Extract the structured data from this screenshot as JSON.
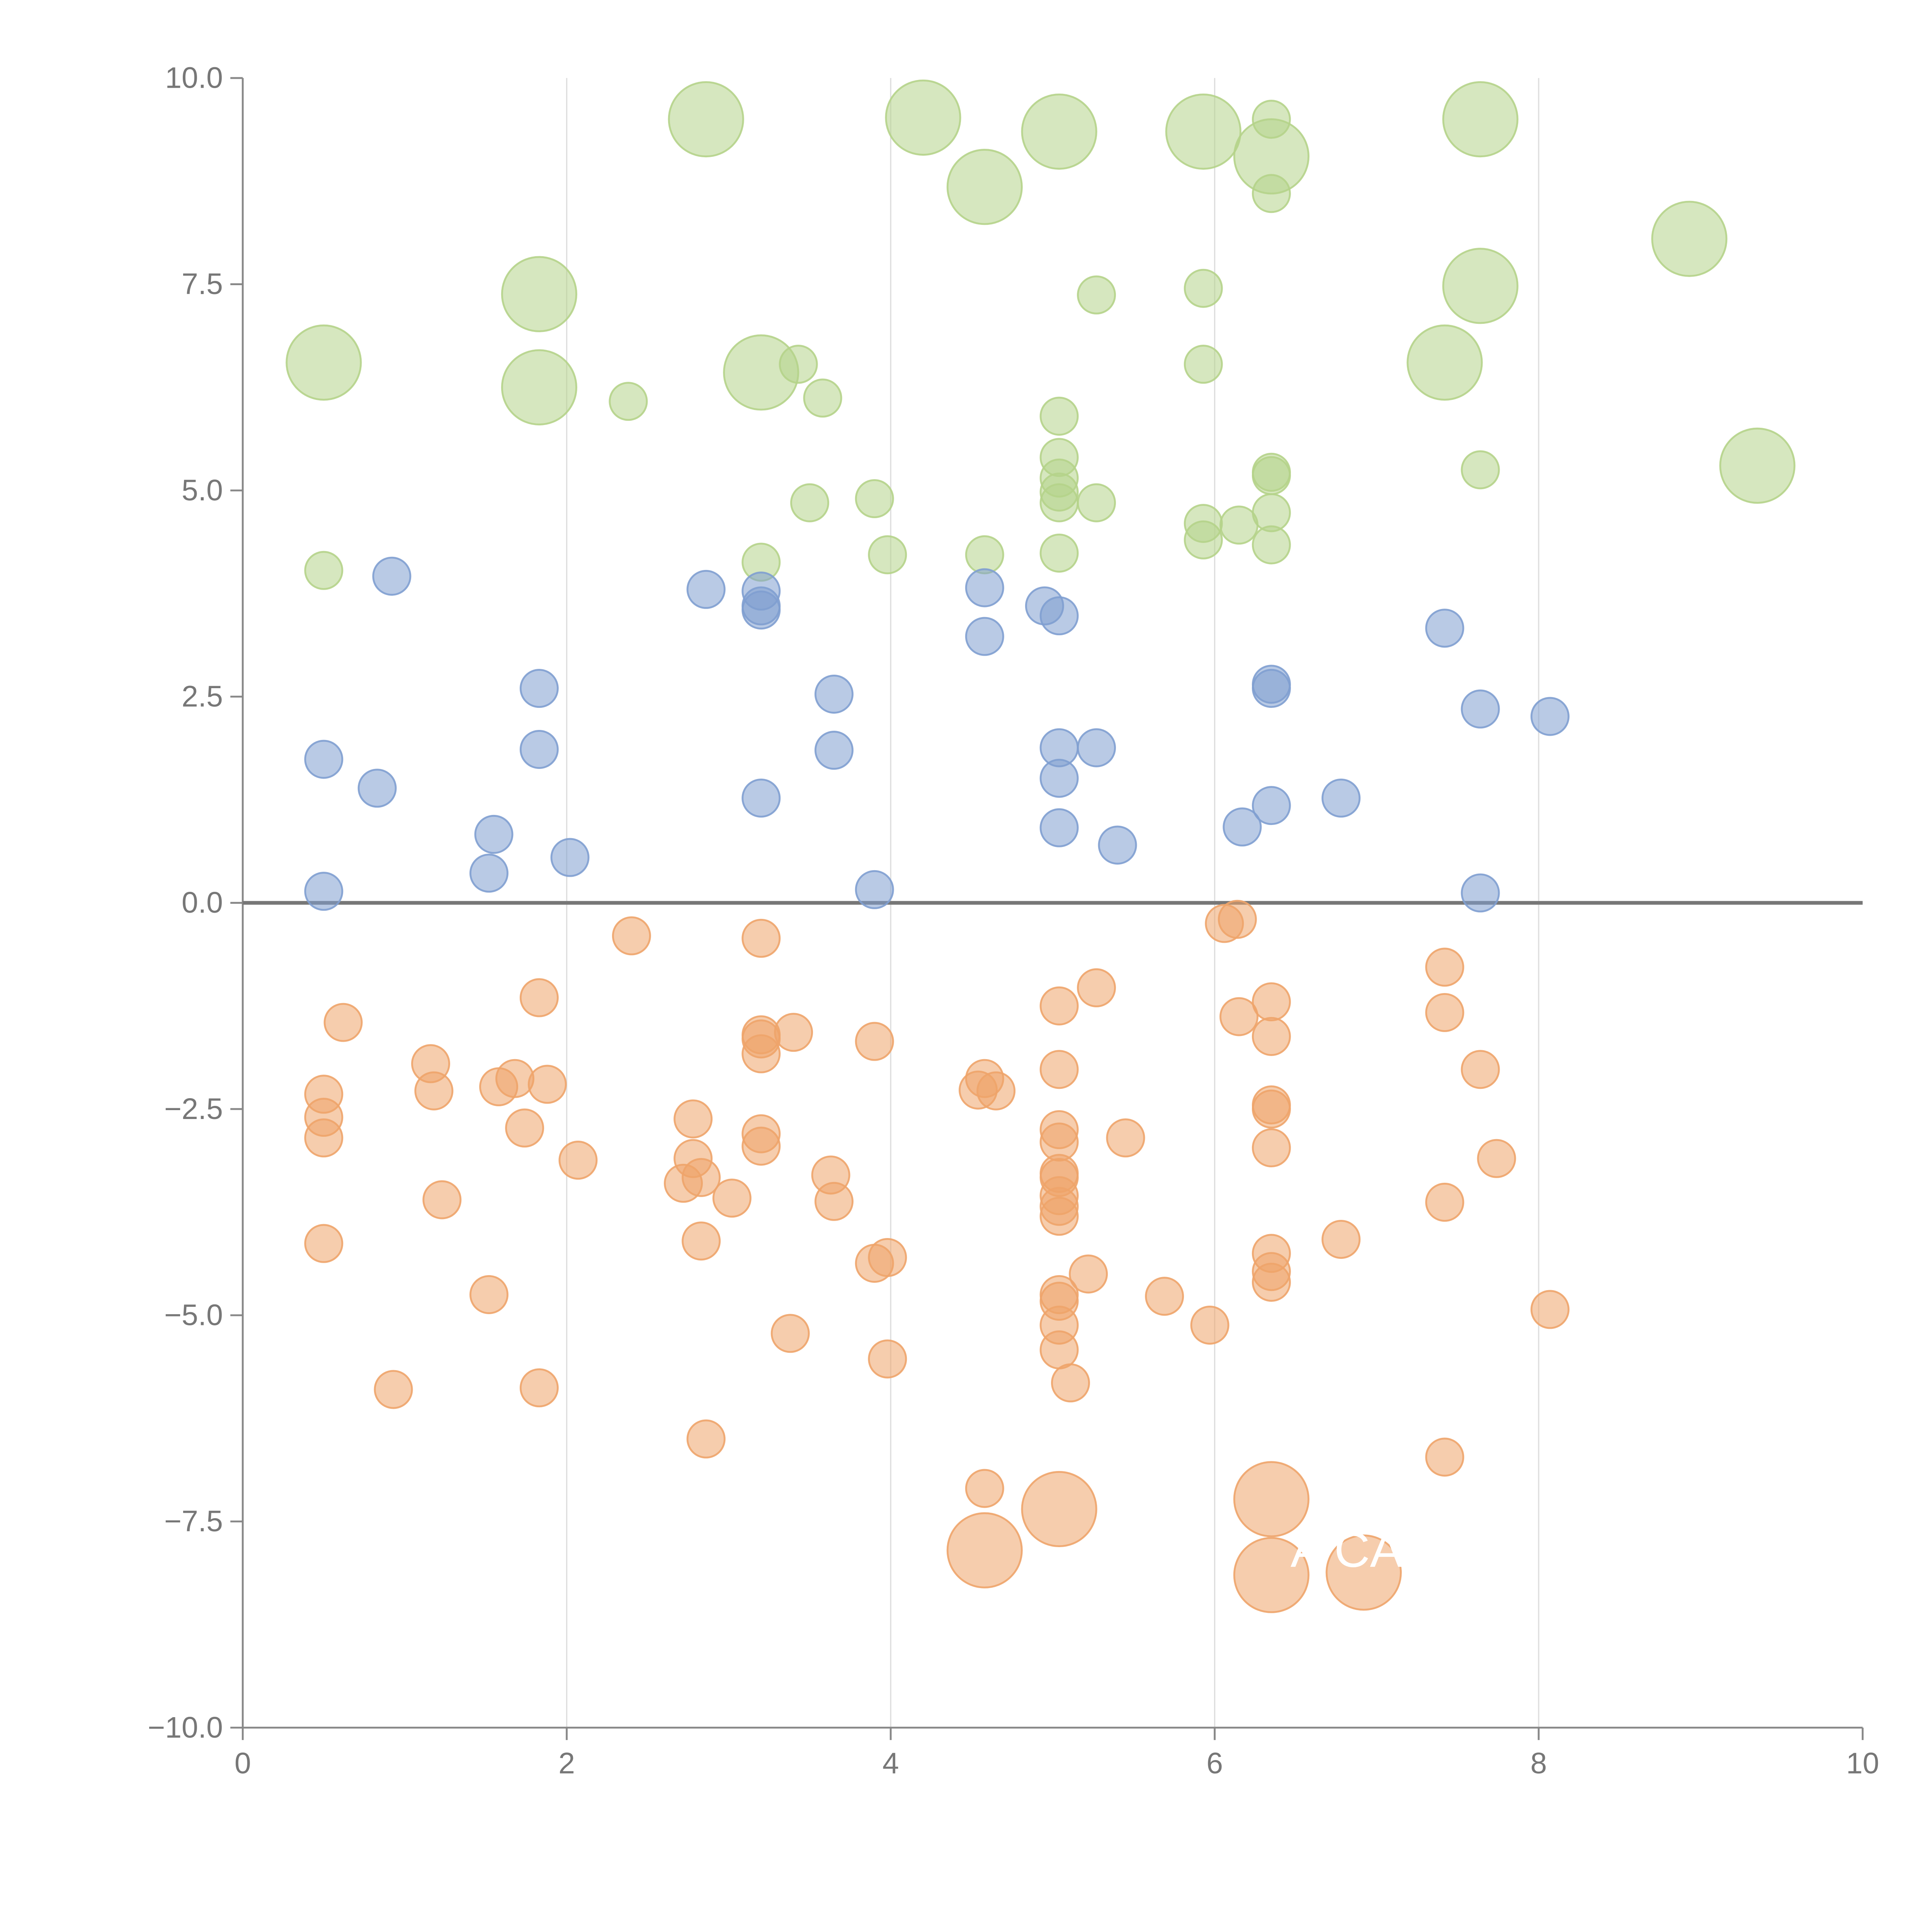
{
  "chart_data": {
    "type": "scatter",
    "title": "",
    "xlabel": "",
    "ylabel": "",
    "xlim": [
      0,
      10
    ],
    "ylim": [
      -10,
      10
    ],
    "x_ticks": [
      0,
      2,
      4,
      6,
      8,
      10
    ],
    "x_tick_labels": [
      "0",
      "2",
      "4",
      "6",
      "8",
      "10"
    ],
    "y_ticks": [
      -10,
      -7.5,
      -5,
      -2.5,
      0,
      2.5,
      5,
      7.5,
      10
    ],
    "y_tick_labels": [
      "−10.0",
      "−7.5",
      "−5.0",
      "−2.5",
      "0.0",
      "2.5",
      "5.0",
      "7.5",
      "10.0"
    ],
    "vertical_gridlines_at": [
      2,
      4,
      6,
      8
    ],
    "zero_line": 0,
    "colors": {
      "green": "#b5d38a",
      "blue": "#7f9fd0",
      "orange": "#eea46a",
      "axis": "#888888",
      "grid": "#dddddd",
      "zero": "#777777"
    },
    "series": [
      {
        "name": "green",
        "color": "#b5d38a",
        "points": [
          [
            0.5,
            6.55,
            "L"
          ],
          [
            1.83,
            7.38,
            "L"
          ],
          [
            1.83,
            6.25,
            "L"
          ],
          [
            2.86,
            9.5,
            "L"
          ],
          [
            3.2,
            6.43,
            "L"
          ],
          [
            4.2,
            9.52,
            "L"
          ],
          [
            4.58,
            8.68,
            "L"
          ],
          [
            5.04,
            9.35,
            "L"
          ],
          [
            5.93,
            9.35,
            "L"
          ],
          [
            6.35,
            9.05,
            "L"
          ],
          [
            7.42,
            6.55,
            "L"
          ],
          [
            7.64,
            9.5,
            "L"
          ],
          [
            7.64,
            7.48,
            "L"
          ],
          [
            8.93,
            8.05,
            "L"
          ],
          [
            9.35,
            5.3,
            "L"
          ],
          [
            0.5,
            4.03,
            "S"
          ],
          [
            2.38,
            6.08,
            "S"
          ],
          [
            3.2,
            4.13,
            "S"
          ],
          [
            3.43,
            6.53,
            "S"
          ],
          [
            3.5,
            4.85,
            "S"
          ],
          [
            3.58,
            6.12,
            "S"
          ],
          [
            3.9,
            4.9,
            "S"
          ],
          [
            3.98,
            4.22,
            "S"
          ],
          [
            4.58,
            4.22,
            "S"
          ],
          [
            5.04,
            5.9,
            "S"
          ],
          [
            5.04,
            5.4,
            "S"
          ],
          [
            5.04,
            5.15,
            "S"
          ],
          [
            5.04,
            4.98,
            "S"
          ],
          [
            5.04,
            4.85,
            "S"
          ],
          [
            5.04,
            4.24,
            "S"
          ],
          [
            5.27,
            7.37,
            "S"
          ],
          [
            5.27,
            4.85,
            "S"
          ],
          [
            5.93,
            7.45,
            "S"
          ],
          [
            5.93,
            6.53,
            "S"
          ],
          [
            5.93,
            4.6,
            "S"
          ],
          [
            5.93,
            4.4,
            "S"
          ],
          [
            6.15,
            4.58,
            "S"
          ],
          [
            6.35,
            9.5,
            "S"
          ],
          [
            6.35,
            8.6,
            "S"
          ],
          [
            6.35,
            5.22,
            "S"
          ],
          [
            6.35,
            5.18,
            "S"
          ],
          [
            6.35,
            4.73,
            "S"
          ],
          [
            6.35,
            4.34,
            "S"
          ],
          [
            7.64,
            5.25,
            "S"
          ]
        ]
      },
      {
        "name": "blue",
        "color": "#7f9fd0",
        "points": [
          [
            0.5,
            1.74,
            "S"
          ],
          [
            0.5,
            0.14,
            "S"
          ],
          [
            0.83,
            1.39,
            "S"
          ],
          [
            0.92,
            3.96,
            "S"
          ],
          [
            1.52,
            0.36,
            "S"
          ],
          [
            1.55,
            0.83,
            "S"
          ],
          [
            1.83,
            2.6,
            "S"
          ],
          [
            1.83,
            1.86,
            "S"
          ],
          [
            2.02,
            0.55,
            "S"
          ],
          [
            2.86,
            3.8,
            "S"
          ],
          [
            3.2,
            3.78,
            "S"
          ],
          [
            3.2,
            3.6,
            "S"
          ],
          [
            3.2,
            3.55,
            "S"
          ],
          [
            3.2,
            1.27,
            "S"
          ],
          [
            3.65,
            2.53,
            "S"
          ],
          [
            3.65,
            1.85,
            "S"
          ],
          [
            3.9,
            0.16,
            "S"
          ],
          [
            4.58,
            3.82,
            "S"
          ],
          [
            4.58,
            3.23,
            "S"
          ],
          [
            4.95,
            3.6,
            "S"
          ],
          [
            5.04,
            3.48,
            "S"
          ],
          [
            5.04,
            1.88,
            "S"
          ],
          [
            5.04,
            1.51,
            "S"
          ],
          [
            5.04,
            0.91,
            "S"
          ],
          [
            5.27,
            1.88,
            "S"
          ],
          [
            5.4,
            0.7,
            "S"
          ],
          [
            6.17,
            0.92,
            "S"
          ],
          [
            6.35,
            2.65,
            "S"
          ],
          [
            6.35,
            2.6,
            "S"
          ],
          [
            6.35,
            1.18,
            "S"
          ],
          [
            6.78,
            1.27,
            "S"
          ],
          [
            7.42,
            3.33,
            "S"
          ],
          [
            7.64,
            2.35,
            "S"
          ],
          [
            7.64,
            0.12,
            "S"
          ],
          [
            8.07,
            2.26,
            "S"
          ]
        ]
      },
      {
        "name": "orange",
        "color": "#eea46a",
        "points": [
          [
            4.58,
            -7.85,
            "L"
          ],
          [
            5.04,
            -7.35,
            "L"
          ],
          [
            6.35,
            -7.23,
            "L"
          ],
          [
            6.35,
            -8.15,
            "L"
          ],
          [
            6.92,
            -8.12,
            "L"
          ],
          [
            0.5,
            -2.32,
            "S"
          ],
          [
            0.5,
            -2.6,
            "S"
          ],
          [
            0.5,
            -2.85,
            "S"
          ],
          [
            0.5,
            -4.13,
            "S"
          ],
          [
            0.62,
            -1.45,
            "S"
          ],
          [
            0.93,
            -5.9,
            "S"
          ],
          [
            1.16,
            -1.95,
            "S"
          ],
          [
            1.18,
            -2.28,
            "S"
          ],
          [
            1.23,
            -3.6,
            "S"
          ],
          [
            1.52,
            -4.75,
            "S"
          ],
          [
            1.58,
            -2.23,
            "S"
          ],
          [
            1.68,
            -2.13,
            "S"
          ],
          [
            1.74,
            -2.73,
            "S"
          ],
          [
            1.83,
            -1.15,
            "S"
          ],
          [
            1.83,
            -5.88,
            "S"
          ],
          [
            1.88,
            -2.2,
            "S"
          ],
          [
            2.07,
            -3.12,
            "S"
          ],
          [
            2.4,
            -0.4,
            "S"
          ],
          [
            2.72,
            -3.4,
            "S"
          ],
          [
            2.78,
            -2.62,
            "S"
          ],
          [
            2.78,
            -3.1,
            "S"
          ],
          [
            2.83,
            -4.1,
            "S"
          ],
          [
            2.83,
            -3.33,
            "S"
          ],
          [
            2.86,
            -6.5,
            "S"
          ],
          [
            3.02,
            -3.58,
            "S"
          ],
          [
            3.2,
            -0.43,
            "S"
          ],
          [
            3.2,
            -1.6,
            "S"
          ],
          [
            3.2,
            -1.65,
            "S"
          ],
          [
            3.2,
            -1.83,
            "S"
          ],
          [
            3.2,
            -2.8,
            "S"
          ],
          [
            3.2,
            -2.95,
            "S"
          ],
          [
            3.38,
            -5.22,
            "S"
          ],
          [
            3.4,
            -1.57,
            "S"
          ],
          [
            3.63,
            -3.3,
            "S"
          ],
          [
            3.65,
            -3.62,
            "S"
          ],
          [
            3.9,
            -1.68,
            "S"
          ],
          [
            3.9,
            -4.37,
            "S"
          ],
          [
            3.98,
            -4.3,
            "S"
          ],
          [
            3.98,
            -5.53,
            "S"
          ],
          [
            4.54,
            -2.27,
            "S"
          ],
          [
            4.58,
            -2.13,
            "S"
          ],
          [
            4.58,
            -7.1,
            "S"
          ],
          [
            4.65,
            -2.28,
            "S"
          ],
          [
            5.04,
            -1.25,
            "S"
          ],
          [
            5.04,
            -2.02,
            "S"
          ],
          [
            5.04,
            -2.75,
            "S"
          ],
          [
            5.04,
            -2.9,
            "S"
          ],
          [
            5.04,
            -3.28,
            "S"
          ],
          [
            5.04,
            -3.33,
            "S"
          ],
          [
            5.04,
            -3.55,
            "S"
          ],
          [
            5.04,
            -3.68,
            "S"
          ],
          [
            5.04,
            -3.8,
            "S"
          ],
          [
            5.04,
            -4.75,
            "S"
          ],
          [
            5.04,
            -4.83,
            "S"
          ],
          [
            5.04,
            -5.12,
            "S"
          ],
          [
            5.04,
            -5.42,
            "S"
          ],
          [
            5.11,
            -5.82,
            "S"
          ],
          [
            5.22,
            -4.5,
            "S"
          ],
          [
            5.27,
            -1.03,
            "S"
          ],
          [
            5.45,
            -2.85,
            "S"
          ],
          [
            5.69,
            -4.77,
            "S"
          ],
          [
            5.97,
            -5.12,
            "S"
          ],
          [
            6.06,
            -0.25,
            "S"
          ],
          [
            6.14,
            -0.2,
            "S"
          ],
          [
            6.15,
            -1.38,
            "S"
          ],
          [
            6.35,
            -1.2,
            "S"
          ],
          [
            6.35,
            -1.62,
            "S"
          ],
          [
            6.35,
            -2.45,
            "S"
          ],
          [
            6.35,
            -2.5,
            "S"
          ],
          [
            6.35,
            -2.97,
            "S"
          ],
          [
            6.35,
            -4.25,
            "S"
          ],
          [
            6.35,
            -4.47,
            "S"
          ],
          [
            6.35,
            -4.6,
            "S"
          ],
          [
            6.78,
            -4.08,
            "S"
          ],
          [
            7.42,
            -0.78,
            "S"
          ],
          [
            7.42,
            -1.33,
            "S"
          ],
          [
            7.42,
            -3.63,
            "S"
          ],
          [
            7.42,
            -6.72,
            "S"
          ],
          [
            7.64,
            -2.02,
            "S"
          ],
          [
            7.74,
            -3.1,
            "S"
          ],
          [
            8.07,
            -4.93,
            "S"
          ]
        ]
      }
    ],
    "annotations": [
      {
        "text": "A",
        "x": 6.57,
        "y": -8.05
      },
      {
        "text": "CA",
        "x": 6.95,
        "y": -8.05
      }
    ]
  }
}
